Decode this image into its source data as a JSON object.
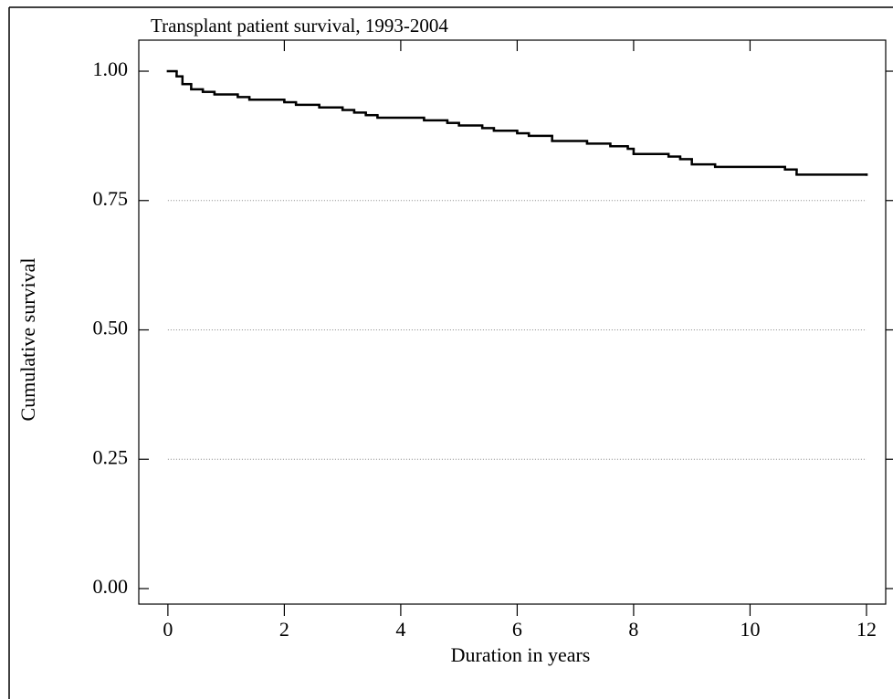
{
  "chart_data": {
    "type": "step",
    "title": "Transplant patient survival, 1993-2004",
    "x_label": "Duration in years",
    "y_label": "Cumulative survival",
    "x": [
      0,
      0.15,
      0.25,
      0.4,
      0.6,
      0.8,
      1.2,
      1.4,
      2.0,
      2.2,
      2.6,
      3.0,
      3.2,
      3.4,
      3.6,
      4.4,
      4.8,
      5.0,
      5.4,
      5.6,
      6.0,
      6.2,
      6.6,
      7.2,
      7.6,
      7.9,
      8.0,
      8.6,
      8.8,
      9.0,
      9.4,
      10.6,
      10.8,
      12
    ],
    "values": [
      1.0,
      0.99,
      0.975,
      0.965,
      0.96,
      0.955,
      0.95,
      0.945,
      0.94,
      0.935,
      0.93,
      0.925,
      0.92,
      0.915,
      0.91,
      0.905,
      0.9,
      0.895,
      0.89,
      0.885,
      0.88,
      0.875,
      0.865,
      0.86,
      0.855,
      0.85,
      0.84,
      0.835,
      0.83,
      0.82,
      0.815,
      0.81,
      0.8,
      0.8
    ],
    "color": "#000000",
    "xlim": [
      -0.5,
      12.33
    ],
    "ylim": [
      -0.03,
      1.06
    ],
    "xticks": [
      0,
      2,
      4,
      6,
      8,
      10,
      12
    ],
    "yticks": [
      {
        "value": 0,
        "label": "0.00"
      },
      {
        "value": 0.25,
        "label": "0.25"
      },
      {
        "value": 0.5,
        "label": "0.50"
      },
      {
        "value": 0.75,
        "label": "0.75"
      },
      {
        "value": 1,
        "label": "1.00"
      }
    ],
    "grid": true
  }
}
